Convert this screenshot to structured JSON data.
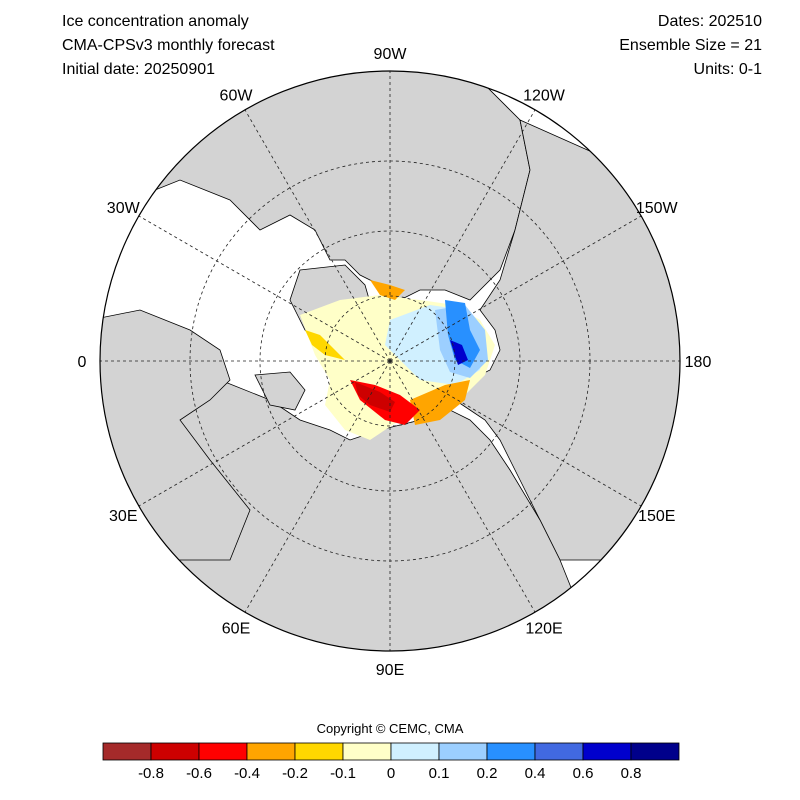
{
  "header": {
    "title": "Ice concentration anomaly",
    "model": "CMA-CPSv3 monthly forecast",
    "initial_date": "Initial date: 20250901",
    "dates": "Dates: 202510",
    "ensemble": "Ensemble Size = 21",
    "units": "Units: 0-1"
  },
  "map": {
    "projection": "north-polar-stereographic",
    "longitude_labels": [
      "90W",
      "120W",
      "150W",
      "180",
      "150E",
      "120E",
      "90E",
      "60E",
      "30E",
      "0",
      "30W",
      "60W"
    ],
    "colors": {
      "land": "#d3d3d3",
      "ocean": "#ffffff",
      "grid": "#222222"
    }
  },
  "footer": {
    "copyright": "Copyright © CEMC, CMA"
  },
  "colorbar": {
    "colors": [
      "#a52a2a",
      "#cd0000",
      "#ff0000",
      "#ffa500",
      "#ffd700",
      "#ffffc8",
      "#d0f0ff",
      "#9ccfff",
      "#2890ff",
      "#4169e1",
      "#0000cd",
      "#00008b"
    ],
    "tick_labels": [
      "-0.8",
      "-0.6",
      "-0.4",
      "-0.2",
      "-0.1",
      "0",
      "0.1",
      "0.2",
      "0.4",
      "0.6",
      "0.8"
    ]
  }
}
